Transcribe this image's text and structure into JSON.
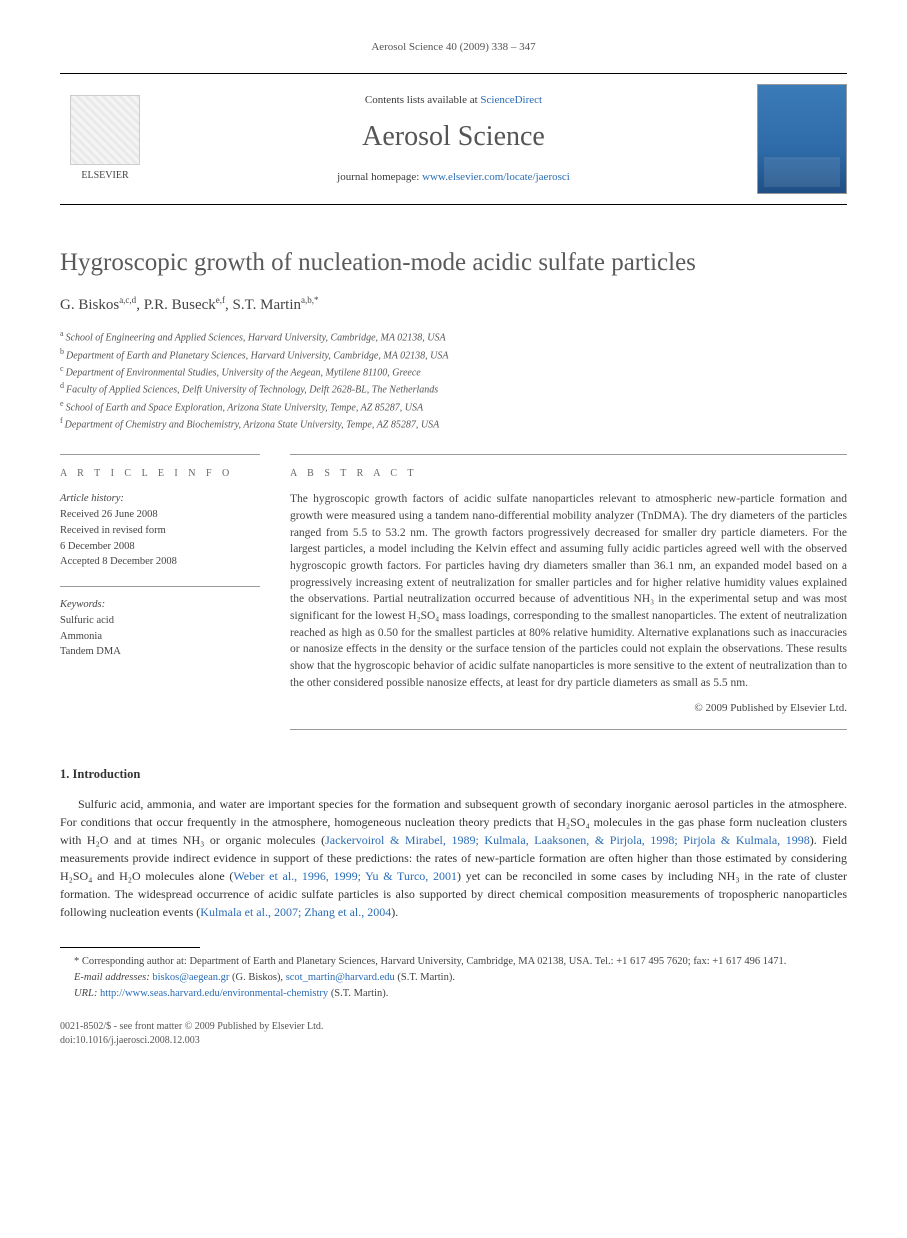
{
  "page_header": "Aerosol Science 40 (2009) 338 – 347",
  "masthead": {
    "publisher": "ELSEVIER",
    "contents_prefix": "Contents lists available at ",
    "contents_link": "ScienceDirect",
    "journal_name": "Aerosol Science",
    "homepage_label": "journal homepage: ",
    "homepage_url": "www.elsevier.com/locate/jaerosci"
  },
  "title": "Hygroscopic growth of nucleation-mode acidic sulfate particles",
  "authors_html": "G. Biskos<sup>a,c,d</sup>, P.R. Buseck<sup>e,f</sup>, S.T. Martin<sup>a,b,*</sup>",
  "affiliations": [
    {
      "sup": "a",
      "text": "School of Engineering and Applied Sciences, Harvard University, Cambridge, MA 02138, USA"
    },
    {
      "sup": "b",
      "text": "Department of Earth and Planetary Sciences, Harvard University, Cambridge, MA 02138, USA"
    },
    {
      "sup": "c",
      "text": "Department of Environmental Studies, University of the Aegean, Mytilene 81100, Greece"
    },
    {
      "sup": "d",
      "text": "Faculty of Applied Sciences, Delft University of Technology, Delft 2628-BL, The Netherlands"
    },
    {
      "sup": "e",
      "text": "School of Earth and Space Exploration, Arizona State University, Tempe, AZ 85287, USA"
    },
    {
      "sup": "f",
      "text": "Department of Chemistry and Biochemistry, Arizona State University, Tempe, AZ 85287, USA"
    }
  ],
  "article_info": {
    "label": "A R T I C L E   I N F O",
    "history_head": "Article history:",
    "received": "Received 26 June 2008",
    "revised_l1": "Received in revised form",
    "revised_l2": "6 December 2008",
    "accepted": "Accepted 8 December 2008",
    "keywords_head": "Keywords:",
    "keywords": [
      "Sulfuric acid",
      "Ammonia",
      "Tandem DMA"
    ]
  },
  "abstract": {
    "label": "A B S T R A C T",
    "text": "The hygroscopic growth factors of acidic sulfate nanoparticles relevant to atmospheric new-particle formation and growth were measured using a tandem nano-differential mobility analyzer (TnDMA). The dry diameters of the particles ranged from 5.5 to 53.2 nm. The growth factors progressively decreased for smaller dry particle diameters. For the largest particles, a model including the Kelvin effect and assuming fully acidic particles agreed well with the observed hygroscopic growth factors. For particles having dry diameters smaller than 36.1 nm, an expanded model based on a progressively increasing extent of neutralization for smaller particles and for higher relative humidity values explained the observations. Partial neutralization occurred because of adventitious NH₃ in the experimental setup and was most significant for the lowest H₂SO₄ mass loadings, corresponding to the smallest nanoparticles. The extent of neutralization reached as high as 0.50 for the smallest particles at 80% relative humidity. Alternative explanations such as inaccuracies or nanosize effects in the density or the surface tension of the particles could not explain the observations. These results show that the hygroscopic behavior of acidic sulfate nanoparticles is more sensitive to the extent of neutralization than to the other considered possible nanosize effects, at least for dry particle diameters as small as 5.5 nm.",
    "copyright": "© 2009 Published by Elsevier Ltd."
  },
  "sections": {
    "intro_heading": "1. Introduction",
    "intro_p1_pre": "Sulfuric acid, ammonia, and water are important species for the formation and subsequent growth of secondary inorganic aerosol particles in the atmosphere. For conditions that occur frequently in the atmosphere, homogeneous nucleation theory predicts that H₂SO₄ molecules in the gas phase form nucleation clusters with H₂O and at times NH₃ or organic molecules (",
    "intro_p1_link1": "Jackervoirol & Mirabel, 1989; Kulmala, Laaksonen, & Pirjola, 1998; Pirjola & Kulmala, 1998",
    "intro_p1_mid1": "). Field measurements provide indirect evidence in support of these predictions: the rates of new-particle formation are often higher than those estimated by considering H₂SO₄ and H₂O molecules alone (",
    "intro_p1_link2": "Weber et al., 1996, 1999; Yu & Turco, 2001",
    "intro_p1_mid2": ") yet can be reconciled in some cases by including NH₃ in the rate of cluster formation. The widespread occurrence of acidic sulfate particles is also supported by direct chemical composition measurements of tropospheric nanoparticles following nucleation events (",
    "intro_p1_link3": "Kulmala et al., 2007; Zhang et al., 2004",
    "intro_p1_post": ")."
  },
  "footnotes": {
    "corresponding": "* Corresponding author at: Department of Earth and Planetary Sciences, Harvard University, Cambridge, MA 02138, USA. Tel.: +1 617 495 7620; fax: +1 617 496 1471.",
    "email_label": "E-mail addresses: ",
    "email1": "biskos@aegean.gr",
    "email1_who": " (G. Biskos), ",
    "email2": "scot_martin@harvard.edu",
    "email2_who": " (S.T. Martin).",
    "url_label": "URL: ",
    "url": "http://www.seas.harvard.edu/environmental-chemistry",
    "url_who": " (S.T. Martin)."
  },
  "bottom": {
    "issn_line": "0021-8502/$ - see front matter © 2009 Published by Elsevier Ltd.",
    "doi_line": "doi:10.1016/j.jaerosci.2008.12.003"
  },
  "colors": {
    "link": "#2a6cb5",
    "text": "#3a3a3a",
    "rule": "#999999",
    "cover_bg": "#3b7bb8"
  },
  "typography": {
    "title_pt": 25,
    "body_pt": 12,
    "abstract_pt": 11.5,
    "affil_pt": 10,
    "footnote_pt": 10.5
  }
}
